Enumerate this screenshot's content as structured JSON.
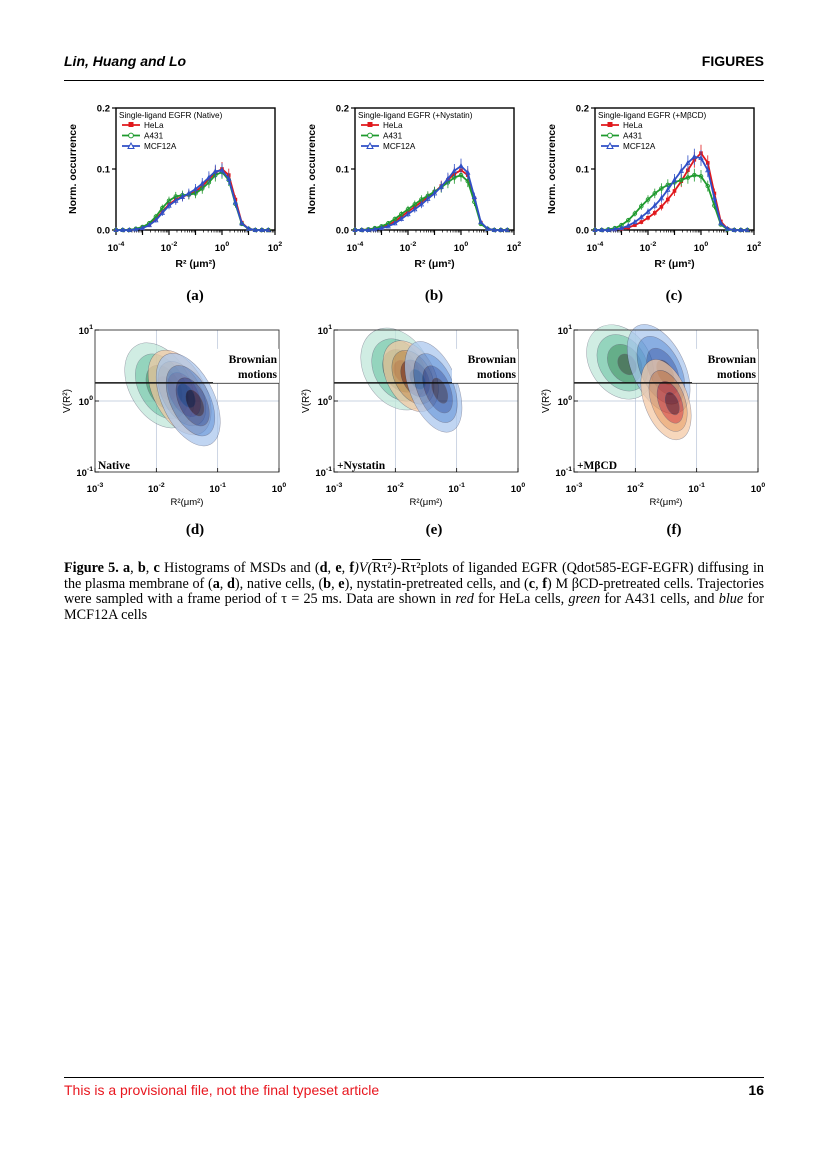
{
  "header": {
    "authors": "Lin, Huang and Lo",
    "section": "FIGURES"
  },
  "histograms": [
    {
      "panel": "(a)",
      "legend_title": "Single-ligand EGFR (Native)"
    },
    {
      "panel": "(b)",
      "legend_title": "Single-ligand EGFR (+Nystatin)"
    },
    {
      "panel": "(c)",
      "legend_title": "Single-ligand EGFR (+MβCD)"
    }
  ],
  "hist_axis": {
    "ylabel": "Norm. occurrence",
    "yticks": [
      "0.0",
      "0.1",
      "0.2"
    ],
    "xticks": [
      {
        "base": "10",
        "exp": "-4"
      },
      {
        "base": "10",
        "exp": "-2"
      },
      {
        "base": "10",
        "exp": "0"
      },
      {
        "base": "10",
        "exp": "2"
      }
    ],
    "xlabel": "R² (μm²)"
  },
  "legend": [
    {
      "name": "HeLa",
      "color": "#e0181c",
      "marker": "square"
    },
    {
      "name": "A431",
      "color": "#1f9a2e",
      "marker": "circle"
    },
    {
      "name": "MCF12A",
      "color": "#2f4fc6",
      "marker": "triangle"
    }
  ],
  "contours": [
    {
      "panel": "(d)",
      "condition": "Native"
    },
    {
      "panel": "(e)",
      "condition": "+Nystatin"
    },
    {
      "panel": "(f)",
      "condition": "+MβCD"
    }
  ],
  "contour_axis": {
    "brownian_line1": "Brownian",
    "brownian_line2": "motions",
    "ylabel": "V(R²)",
    "yticks": [
      {
        "base": "10",
        "exp": "1"
      },
      {
        "base": "10",
        "exp": "0"
      },
      {
        "base": "10",
        "exp": "-1"
      }
    ],
    "xticks": [
      {
        "base": "10",
        "exp": "-3"
      },
      {
        "base": "10",
        "exp": "-2"
      },
      {
        "base": "10",
        "exp": "-1"
      },
      {
        "base": "10",
        "exp": "0"
      }
    ],
    "xlabel": "R²(μm²)"
  },
  "chart_data": [
    {
      "type": "line",
      "panel": "(a)",
      "title": "Single-ligand EGFR (Native)",
      "xlabel": "R² (μm²)",
      "ylabel": "Norm. occurrence",
      "xscale": "log",
      "xlim": [
        0.0001,
        100
      ],
      "ylim": [
        0,
        0.2
      ],
      "x": [
        0.0001,
        0.00018,
        0.00032,
        0.00056,
        0.001,
        0.0018,
        0.0032,
        0.0056,
        0.01,
        0.018,
        0.032,
        0.056,
        0.1,
        0.18,
        0.32,
        0.56,
        1,
        1.8,
        3.2,
        5.6,
        10,
        18,
        32,
        56
      ],
      "series": [
        {
          "name": "HeLa",
          "values": [
            0,
            0,
            0,
            0.001,
            0.004,
            0.009,
            0.018,
            0.03,
            0.042,
            0.05,
            0.055,
            0.058,
            0.063,
            0.072,
            0.083,
            0.094,
            0.1,
            0.09,
            0.05,
            0.012,
            0.002,
            0,
            0,
            0
          ]
        },
        {
          "name": "A431",
          "values": [
            0,
            0,
            0,
            0.002,
            0.005,
            0.011,
            0.022,
            0.036,
            0.048,
            0.055,
            0.057,
            0.058,
            0.06,
            0.068,
            0.078,
            0.09,
            0.095,
            0.082,
            0.043,
            0.01,
            0.002,
            0,
            0,
            0
          ]
        },
        {
          "name": "MCF12A",
          "values": [
            0,
            0,
            0,
            0.001,
            0.003,
            0.008,
            0.016,
            0.028,
            0.04,
            0.048,
            0.054,
            0.06,
            0.067,
            0.076,
            0.086,
            0.096,
            0.098,
            0.084,
            0.045,
            0.011,
            0.002,
            0,
            0,
            0
          ]
        }
      ]
    },
    {
      "type": "line",
      "panel": "(b)",
      "title": "Single-ligand EGFR (+Nystatin)",
      "xlabel": "R² (μm²)",
      "ylabel": "Norm. occurrence",
      "xscale": "log",
      "xlim": [
        0.0001,
        100
      ],
      "ylim": [
        0,
        0.2
      ],
      "x": [
        0.0001,
        0.00018,
        0.00032,
        0.00056,
        0.001,
        0.0018,
        0.0032,
        0.0056,
        0.01,
        0.018,
        0.032,
        0.056,
        0.1,
        0.18,
        0.32,
        0.56,
        1,
        1.8,
        3.2,
        5.6,
        10,
        18,
        32,
        56
      ],
      "series": [
        {
          "name": "HeLa",
          "values": [
            0,
            0,
            0.001,
            0.002,
            0.004,
            0.008,
            0.014,
            0.022,
            0.03,
            0.038,
            0.046,
            0.054,
            0.062,
            0.072,
            0.082,
            0.092,
            0.098,
            0.09,
            0.052,
            0.012,
            0.002,
            0,
            0,
            0
          ]
        },
        {
          "name": "A431",
          "values": [
            0,
            0,
            0.001,
            0.003,
            0.006,
            0.011,
            0.018,
            0.026,
            0.034,
            0.042,
            0.05,
            0.056,
            0.063,
            0.07,
            0.078,
            0.086,
            0.09,
            0.08,
            0.046,
            0.01,
            0.002,
            0,
            0,
            0
          ]
        },
        {
          "name": "MCF12A",
          "values": [
            0,
            0,
            0,
            0.001,
            0.003,
            0.006,
            0.011,
            0.018,
            0.026,
            0.034,
            0.042,
            0.051,
            0.06,
            0.071,
            0.084,
            0.097,
            0.105,
            0.094,
            0.054,
            0.013,
            0.002,
            0,
            0,
            0
          ]
        }
      ]
    },
    {
      "type": "line",
      "panel": "(c)",
      "title": "Single-ligand EGFR (+MβCD)",
      "xlabel": "R² (μm²)",
      "ylabel": "Norm. occurrence",
      "xscale": "log",
      "xlim": [
        0.0001,
        100
      ],
      "ylim": [
        0,
        0.2
      ],
      "x": [
        0.0001,
        0.00018,
        0.00032,
        0.00056,
        0.001,
        0.0018,
        0.0032,
        0.0056,
        0.01,
        0.018,
        0.032,
        0.056,
        0.1,
        0.18,
        0.32,
        0.56,
        1,
        1.8,
        3.2,
        5.6,
        10,
        18,
        32,
        56
      ],
      "series": [
        {
          "name": "HeLa",
          "values": [
            0,
            0,
            0,
            0.001,
            0.002,
            0.004,
            0.008,
            0.013,
            0.02,
            0.028,
            0.038,
            0.05,
            0.064,
            0.08,
            0.098,
            0.115,
            0.126,
            0.11,
            0.06,
            0.014,
            0.002,
            0,
            0,
            0
          ]
        },
        {
          "name": "A431",
          "values": [
            0,
            0,
            0.001,
            0.003,
            0.008,
            0.016,
            0.027,
            0.039,
            0.05,
            0.06,
            0.068,
            0.074,
            0.078,
            0.082,
            0.086,
            0.09,
            0.088,
            0.072,
            0.04,
            0.009,
            0.001,
            0,
            0,
            0
          ]
        },
        {
          "name": "MCF12A",
          "values": [
            0,
            0,
            0,
            0.001,
            0.003,
            0.007,
            0.013,
            0.021,
            0.03,
            0.04,
            0.052,
            0.066,
            0.082,
            0.097,
            0.11,
            0.12,
            0.118,
            0.098,
            0.052,
            0.011,
            0.002,
            0,
            0,
            0
          ]
        }
      ]
    }
  ],
  "caption": {
    "label": "Figure 5.",
    "seg_a": "a",
    "seg_b": "b",
    "seg_c": "c",
    "t_hist": " Histograms of MSDs and (",
    "seg_d": "d",
    "seg_e": "e",
    "seg_f": "f",
    "t_v": ")V(",
    "t_r1": "Rτ²",
    "t_dash": ")-",
    "t_r2": "Rτ²",
    "t_plots": "plots of liganded EGFR (Qdot585-EGF-EGFR) diffusing in the plasma membrane of (",
    "t_ad": "), native cells, (",
    "t_be": "), nystatin-pretreated cells, and (",
    "t_cf": ") M βCD-pretreated cells. Trajectories were sampled with a frame period of τ = 25 ms. Data are shown in ",
    "red": "red",
    "t_hela": " for HeLa cells, ",
    "green": "green",
    "t_a431": " for A431 cells, and ",
    "blue": "blue",
    "t_mcf": " for MCF12A cells"
  },
  "footer": {
    "note": "This is a provisional file, not the final typeset article",
    "page": "16"
  }
}
